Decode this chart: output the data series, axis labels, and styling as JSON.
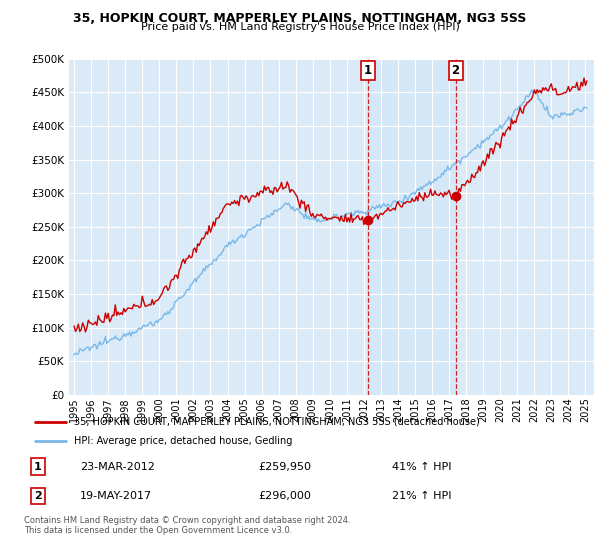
{
  "title": "35, HOPKIN COURT, MAPPERLEY PLAINS, NOTTINGHAM, NG3 5SS",
  "subtitle": "Price paid vs. HM Land Registry's House Price Index (HPI)",
  "legend_entry1": "35, HOPKIN COURT, MAPPERLEY PLAINS, NOTTINGHAM, NG3 5SS (detached house)",
  "legend_entry2": "HPI: Average price, detached house, Gedling",
  "annotation1_date": "23-MAR-2012",
  "annotation1_price": "£259,950",
  "annotation1_hpi": "41% ↑ HPI",
  "annotation1_year": 2012.22,
  "annotation1_value": 259950,
  "annotation2_date": "19-MAY-2017",
  "annotation2_price": "£296,000",
  "annotation2_hpi": "21% ↑ HPI",
  "annotation2_year": 2017.38,
  "annotation2_value": 296000,
  "footer1": "Contains HM Land Registry data © Crown copyright and database right 2024.",
  "footer2": "This data is licensed under the Open Government Licence v3.0.",
  "red_color": "#cc0000",
  "blue_color": "#7ab8e8",
  "shade_color": "#d4e8f7",
  "bg_color": "#daeaf7",
  "plot_bg": "#ffffff",
  "grid_color": "#ffffff",
  "ylim": [
    0,
    500000
  ],
  "ytick_vals": [
    0,
    50000,
    100000,
    150000,
    200000,
    250000,
    300000,
    350000,
    400000,
    450000,
    500000
  ],
  "ytick_labels": [
    "£0",
    "£50K",
    "£100K",
    "£150K",
    "£200K",
    "£250K",
    "£300K",
    "£350K",
    "£400K",
    "£450K",
    "£500K"
  ],
  "xmin": 1994.7,
  "xmax": 2025.5,
  "xtick_years": [
    1995,
    1996,
    1997,
    1998,
    1999,
    2000,
    2001,
    2002,
    2003,
    2004,
    2005,
    2006,
    2007,
    2008,
    2009,
    2010,
    2011,
    2012,
    2013,
    2014,
    2015,
    2016,
    2017,
    2018,
    2019,
    2020,
    2021,
    2022,
    2023,
    2024,
    2025
  ]
}
